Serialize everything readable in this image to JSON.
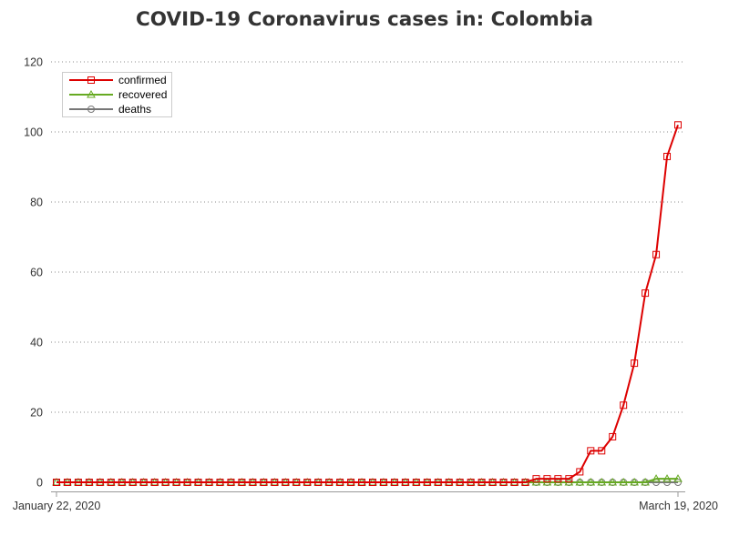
{
  "chart_data": {
    "type": "line",
    "title": "COVID-19 Coronavirus cases in: Colombia",
    "xlabel": "",
    "ylabel": "",
    "x_start": "January 22, 2020",
    "x_end": "March 19, 2020",
    "x_tick_labels": [
      "January 22, 2020",
      "March 19, 2020"
    ],
    "ylim": [
      0,
      120
    ],
    "y_ticks": [
      0,
      20,
      40,
      60,
      80,
      100,
      120
    ],
    "grid": "horizontal dotted",
    "legend_position": "top-left",
    "series": [
      {
        "name": "confirmed",
        "color": "#dd0000",
        "marker": "square",
        "values": [
          0,
          0,
          0,
          0,
          0,
          0,
          0,
          0,
          0,
          0,
          0,
          0,
          0,
          0,
          0,
          0,
          0,
          0,
          0,
          0,
          0,
          0,
          0,
          0,
          0,
          0,
          0,
          0,
          0,
          0,
          0,
          0,
          0,
          0,
          0,
          0,
          0,
          0,
          0,
          0,
          0,
          0,
          0,
          0,
          1,
          1,
          1,
          1,
          3,
          9,
          9,
          13,
          22,
          34,
          54,
          65,
          93,
          102
        ]
      },
      {
        "name": "recovered",
        "color": "#66aa22",
        "marker": "triangle",
        "values": [
          0,
          0,
          0,
          0,
          0,
          0,
          0,
          0,
          0,
          0,
          0,
          0,
          0,
          0,
          0,
          0,
          0,
          0,
          0,
          0,
          0,
          0,
          0,
          0,
          0,
          0,
          0,
          0,
          0,
          0,
          0,
          0,
          0,
          0,
          0,
          0,
          0,
          0,
          0,
          0,
          0,
          0,
          0,
          0,
          0,
          0,
          0,
          0,
          0,
          0,
          0,
          0,
          0,
          0,
          0,
          1,
          1,
          1
        ]
      },
      {
        "name": "deaths",
        "color": "#777777",
        "marker": "circle",
        "values": [
          0,
          0,
          0,
          0,
          0,
          0,
          0,
          0,
          0,
          0,
          0,
          0,
          0,
          0,
          0,
          0,
          0,
          0,
          0,
          0,
          0,
          0,
          0,
          0,
          0,
          0,
          0,
          0,
          0,
          0,
          0,
          0,
          0,
          0,
          0,
          0,
          0,
          0,
          0,
          0,
          0,
          0,
          0,
          0,
          0,
          0,
          0,
          0,
          0,
          0,
          0,
          0,
          0,
          0,
          0,
          0,
          0,
          0
        ]
      }
    ]
  }
}
